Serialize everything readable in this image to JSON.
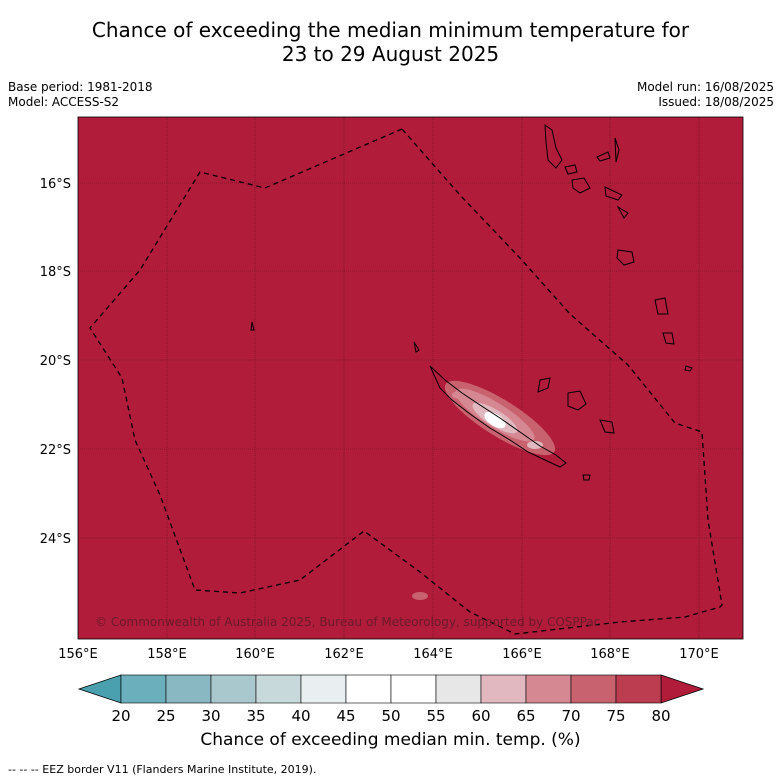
{
  "title": {
    "line1": "Chance of exceeding the median minimum temperature for",
    "line2": "23 to 29 August 2025"
  },
  "meta": {
    "base_period": "Base period: 1981-2018",
    "model": "Model: ACCESS-S2",
    "model_run": "Model run: 16/08/2025",
    "issued": "Issued: 18/08/2025"
  },
  "map": {
    "lat_ticks": [
      "16°S",
      "18°S",
      "20°S",
      "22°S",
      "24°S"
    ],
    "lon_ticks": [
      "156°E",
      "158°E",
      "160°E",
      "162°E",
      "164°E",
      "166°E",
      "168°E",
      "170°E"
    ],
    "background_color": "#b01c3a",
    "copyright": "© Commonwealth of Australia 2025, Bureau of Meteorology, supported by COSPPac"
  },
  "colorbar": {
    "title": "Chance of exceeding median min. temp. (%)",
    "labels": [
      "20",
      "25",
      "30",
      "35",
      "40",
      "45",
      "50",
      "55",
      "60",
      "65",
      "70",
      "75",
      "80"
    ],
    "colors": [
      "#4aa0ae",
      "#6aafbb",
      "#8ab8c2",
      "#a9c8cd",
      "#c8d9dc",
      "#e9eff1",
      "#ffffff",
      "#ffffff",
      "#e7e7e7",
      "#e1b8bf",
      "#d58892",
      "#c9626f",
      "#bb3d4f"
    ],
    "low_extend_color": "#4aa0ae",
    "high_extend_color": "#b01c3a"
  },
  "footnote": "--  --  -- EEZ border V11 (Flanders Marine Institute, 2019)."
}
